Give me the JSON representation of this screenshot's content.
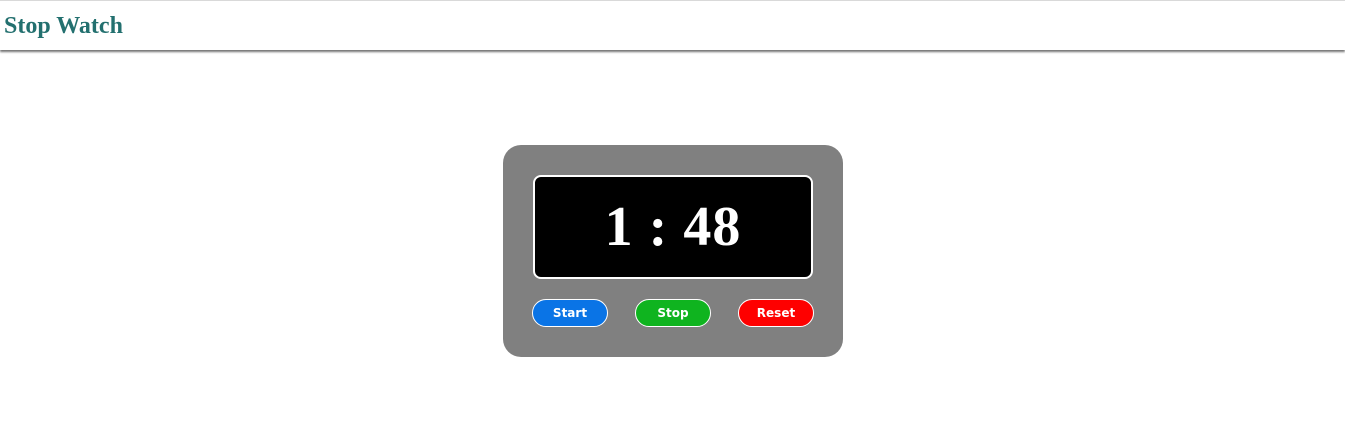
{
  "header": {
    "title": "Stop Watch"
  },
  "stopwatch": {
    "display": "1 : 48",
    "buttons": {
      "start": {
        "label": "Start",
        "color": "#0a74e6"
      },
      "stop": {
        "label": "Stop",
        "color": "#0fb41f"
      },
      "reset": {
        "label": "Reset",
        "color": "#fe0000"
      }
    },
    "colors": {
      "body": "#808080",
      "screen": "#000000",
      "digits": "#ffffff",
      "title": "#23706f"
    }
  }
}
